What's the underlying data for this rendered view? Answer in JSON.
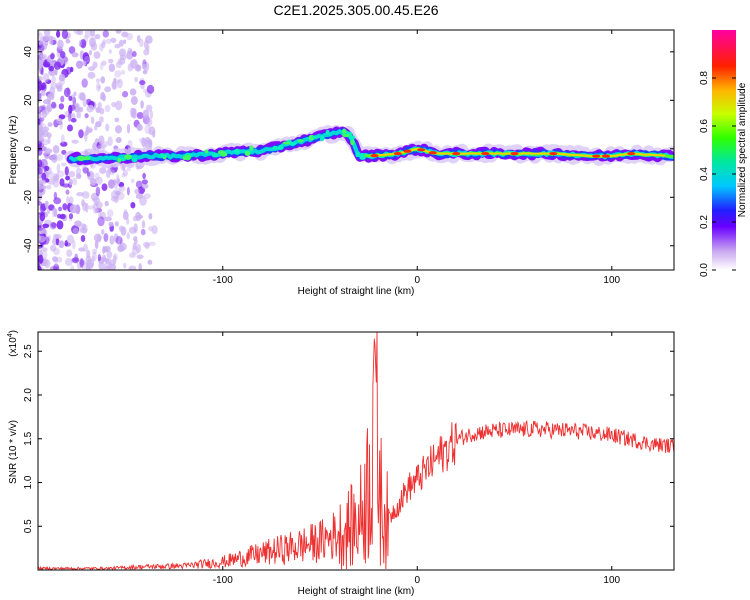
{
  "title": "C2E1.2025.305.00.45.E26",
  "colors": {
    "snr_line": "#ee3030",
    "frame": "#000000",
    "background": "#ffffff"
  },
  "chart_data": [
    {
      "type": "heatmap",
      "name": "spectrogram",
      "xlabel": "Height of straight line (km)",
      "ylabel": "Frequency (Hz)",
      "xlim": [
        -195,
        132
      ],
      "ylim": [
        -50,
        49
      ],
      "xticks": [
        -100,
        0,
        100
      ],
      "yticks": [
        -40,
        -20,
        0,
        20,
        40
      ],
      "colorbar": {
        "label": "Normalized spectral amplitude",
        "range": [
          0,
          1
        ],
        "ticks": [
          0.0,
          0.2,
          0.4,
          0.6,
          0.8
        ],
        "tick_labels": [
          "0.0",
          "0.2",
          "0.4",
          "0.6",
          "0.8"
        ]
      },
      "ridge": {
        "description": "dominant frequency trace",
        "points": [
          {
            "x": -178,
            "y": -4
          },
          {
            "x": -160,
            "y": -4
          },
          {
            "x": -140,
            "y": -3
          },
          {
            "x": -120,
            "y": -3
          },
          {
            "x": -100,
            "y": -2
          },
          {
            "x": -90,
            "y": -1
          },
          {
            "x": -80,
            "y": -1
          },
          {
            "x": -70,
            "y": 1
          },
          {
            "x": -60,
            "y": 3
          },
          {
            "x": -50,
            "y": 5
          },
          {
            "x": -40,
            "y": 7
          },
          {
            "x": -35,
            "y": 6
          },
          {
            "x": -30,
            "y": -3
          },
          {
            "x": -25,
            "y": -3
          },
          {
            "x": -10,
            "y": -2
          },
          {
            "x": 0,
            "y": 0
          },
          {
            "x": 10,
            "y": -2
          },
          {
            "x": 30,
            "y": -2
          },
          {
            "x": 50,
            "y": -2
          },
          {
            "x": 70,
            "y": -2
          },
          {
            "x": 90,
            "y": -3
          },
          {
            "x": 100,
            "y": -3
          },
          {
            "x": 110,
            "y": -2
          },
          {
            "x": 130,
            "y": -3
          }
        ]
      }
    },
    {
      "type": "line",
      "name": "snr",
      "xlabel": "Height of straight line (km)",
      "ylabel": "SNR (10 * v/v)",
      "scale_label": "(x10",
      "scale_exponent": "4",
      "xlim": [
        -195,
        132
      ],
      "ylim": [
        0,
        2.72
      ],
      "xticks": [
        -100,
        0,
        100
      ],
      "yticks": [
        0.5,
        1.0,
        1.5,
        2.0,
        2.5
      ],
      "ytick_labels": [
        "0.5",
        "1.0",
        "1.5",
        "2.0",
        "2.5"
      ],
      "series": [
        {
          "name": "SNR",
          "envelope": [
            {
              "x": -195,
              "y": 0.02
            },
            {
              "x": -160,
              "y": 0.02
            },
            {
              "x": -140,
              "y": 0.04
            },
            {
              "x": -120,
              "y": 0.05
            },
            {
              "x": -100,
              "y": 0.1
            },
            {
              "x": -90,
              "y": 0.15
            },
            {
              "x": -80,
              "y": 0.2
            },
            {
              "x": -70,
              "y": 0.25
            },
            {
              "x": -60,
              "y": 0.3
            },
            {
              "x": -50,
              "y": 0.35
            },
            {
              "x": -40,
              "y": 0.45
            },
            {
              "x": -30,
              "y": 0.6
            },
            {
              "x": -24,
              "y": 1.2
            },
            {
              "x": -22,
              "y": 2.72
            },
            {
              "x": -19,
              "y": 0.9
            },
            {
              "x": -15,
              "y": 0.6
            },
            {
              "x": -10,
              "y": 0.75
            },
            {
              "x": -5,
              "y": 0.95
            },
            {
              "x": 0,
              "y": 1.05
            },
            {
              "x": 10,
              "y": 1.3
            },
            {
              "x": 20,
              "y": 1.5
            },
            {
              "x": 30,
              "y": 1.58
            },
            {
              "x": 40,
              "y": 1.6
            },
            {
              "x": 60,
              "y": 1.62
            },
            {
              "x": 80,
              "y": 1.6
            },
            {
              "x": 100,
              "y": 1.55
            },
            {
              "x": 120,
              "y": 1.45
            },
            {
              "x": 132,
              "y": 1.42
            }
          ]
        }
      ]
    }
  ]
}
